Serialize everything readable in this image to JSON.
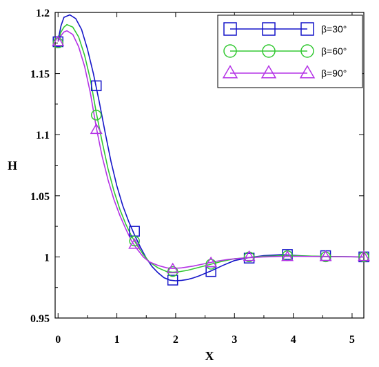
{
  "chart_data": {
    "type": "line",
    "title": "",
    "xlabel": "X",
    "ylabel": "H",
    "xlim": [
      -0.05,
      5.2
    ],
    "ylim": [
      0.95,
      1.2
    ],
    "xticks": [
      0,
      1,
      2,
      3,
      4,
      5
    ],
    "xtick_labels": [
      "0",
      "1",
      "2",
      "3",
      "4",
      "5"
    ],
    "yticks": [
      0.95,
      1,
      1.05,
      1.1,
      1.15,
      1.2
    ],
    "ytick_labels": [
      "0.95",
      "1",
      "1.05",
      "1.1",
      "1.15",
      "1.2"
    ],
    "grid": false,
    "legend_position": "top-right",
    "series": [
      {
        "name": "β=30°",
        "color": "#1414c8",
        "marker": "square",
        "curve": [
          [
            0,
            1.177
          ],
          [
            0.05,
            1.189
          ],
          [
            0.1,
            1.196
          ],
          [
            0.2,
            1.198
          ],
          [
            0.3,
            1.195
          ],
          [
            0.4,
            1.186
          ],
          [
            0.5,
            1.17
          ],
          [
            0.6,
            1.15
          ],
          [
            0.7,
            1.127
          ],
          [
            0.8,
            1.102
          ],
          [
            0.9,
            1.078
          ],
          [
            1.0,
            1.058
          ],
          [
            1.1,
            1.042
          ],
          [
            1.2,
            1.029
          ],
          [
            1.3,
            1.018
          ],
          [
            1.4,
            1.008
          ],
          [
            1.5,
            0.999
          ],
          [
            1.6,
            0.992
          ],
          [
            1.7,
            0.987
          ],
          [
            1.8,
            0.983
          ],
          [
            1.9,
            0.981
          ],
          [
            2.0,
            0.9805
          ],
          [
            2.1,
            0.9808
          ],
          [
            2.2,
            0.9815
          ],
          [
            2.3,
            0.9828
          ],
          [
            2.4,
            0.9845
          ],
          [
            2.5,
            0.9865
          ],
          [
            2.6,
            0.9885
          ],
          [
            2.8,
            0.993
          ],
          [
            3.0,
            0.997
          ],
          [
            3.25,
            0.9995
          ],
          [
            3.5,
            1.001
          ],
          [
            3.8,
            1.0018
          ],
          [
            3.9,
            1.0015
          ],
          [
            4.2,
            1.0008
          ],
          [
            4.55,
            1.0003
          ],
          [
            5.2,
            1.0
          ]
        ],
        "points": [
          [
            0,
            1.176
          ],
          [
            0.65,
            1.14
          ],
          [
            1.3,
            1.021
          ],
          [
            1.95,
            0.981
          ],
          [
            2.6,
            0.988
          ],
          [
            3.25,
            0.999
          ],
          [
            3.9,
            1.002
          ],
          [
            4.55,
            1.001
          ],
          [
            5.2,
            1.0
          ]
        ]
      },
      {
        "name": "β=60°",
        "color": "#32c832",
        "marker": "circle",
        "curve": [
          [
            0,
            1.176
          ],
          [
            0.05,
            1.184
          ],
          [
            0.1,
            1.188
          ],
          [
            0.15,
            1.19
          ],
          [
            0.25,
            1.188
          ],
          [
            0.35,
            1.18
          ],
          [
            0.45,
            1.165
          ],
          [
            0.55,
            1.145
          ],
          [
            0.65,
            1.118
          ],
          [
            0.75,
            1.094
          ],
          [
            0.85,
            1.072
          ],
          [
            0.95,
            1.054
          ],
          [
            1.05,
            1.039
          ],
          [
            1.15,
            1.027
          ],
          [
            1.25,
            1.017
          ],
          [
            1.35,
            1.009
          ],
          [
            1.45,
            1.002
          ],
          [
            1.55,
            0.996
          ],
          [
            1.7,
            0.991
          ],
          [
            1.85,
            0.988
          ],
          [
            1.95,
            0.9875
          ],
          [
            2.05,
            0.9878
          ],
          [
            2.2,
            0.989
          ],
          [
            2.4,
            0.9915
          ],
          [
            2.6,
            0.994
          ],
          [
            2.8,
            0.9965
          ],
          [
            3.0,
            0.9985
          ],
          [
            3.25,
            0.9995
          ],
          [
            3.5,
            1.0005
          ],
          [
            3.9,
            1.001
          ],
          [
            4.55,
            1.0004
          ],
          [
            5.2,
            1.0
          ]
        ],
        "points": [
          [
            0,
            1.175
          ],
          [
            0.65,
            1.116
          ],
          [
            1.3,
            1.013
          ],
          [
            1.95,
            0.988
          ],
          [
            2.6,
            0.994
          ],
          [
            3.25,
            1.0
          ],
          [
            3.9,
            1.001
          ],
          [
            4.55,
            1.0
          ],
          [
            5.2,
            1.0
          ]
        ]
      },
      {
        "name": "β=90°",
        "color": "#b432e6",
        "marker": "triangle",
        "curve": [
          [
            0,
            1.176
          ],
          [
            0.05,
            1.181
          ],
          [
            0.1,
            1.184
          ],
          [
            0.15,
            1.185
          ],
          [
            0.25,
            1.182
          ],
          [
            0.35,
            1.172
          ],
          [
            0.45,
            1.156
          ],
          [
            0.55,
            1.134
          ],
          [
            0.65,
            1.106
          ],
          [
            0.75,
            1.082
          ],
          [
            0.85,
            1.063
          ],
          [
            0.95,
            1.047
          ],
          [
            1.05,
            1.034
          ],
          [
            1.15,
            1.023
          ],
          [
            1.25,
            1.013
          ],
          [
            1.35,
            1.006
          ],
          [
            1.45,
            1.0
          ],
          [
            1.55,
            0.996
          ],
          [
            1.7,
            0.993
          ],
          [
            1.85,
            0.991
          ],
          [
            1.95,
            0.9905
          ],
          [
            2.1,
            0.991
          ],
          [
            2.3,
            0.9925
          ],
          [
            2.5,
            0.9945
          ],
          [
            2.7,
            0.9965
          ],
          [
            2.9,
            0.998
          ],
          [
            3.25,
            0.9993
          ],
          [
            3.5,
            1.0
          ],
          [
            3.9,
            1.0005
          ],
          [
            4.55,
            1.0002
          ],
          [
            5.2,
            1.0
          ]
        ],
        "points": [
          [
            0,
            1.176
          ],
          [
            0.65,
            1.104
          ],
          [
            1.3,
            1.01
          ],
          [
            1.95,
            0.99
          ],
          [
            2.6,
            0.995
          ],
          [
            3.25,
            1.0
          ],
          [
            3.9,
            1.0
          ],
          [
            4.55,
            1.0
          ],
          [
            5.2,
            1.0
          ]
        ]
      }
    ]
  }
}
